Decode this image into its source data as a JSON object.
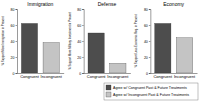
{
  "chart_data": [
    {
      "type": "bar",
      "title": "Immigration",
      "y_label": "% Support More Immigration in Present",
      "categories": [
        "Congruent",
        "Incongruent"
      ],
      "values": [
        62,
        38
      ],
      "colors": [
        "#4d4d4d",
        "#c4c4c4"
      ],
      "ylim": [
        0,
        80
      ],
      "yticks": [
        0,
        20,
        40,
        60,
        80
      ]
    },
    {
      "type": "bar",
      "title": "Defense",
      "y_label": "% Support More Military Investment in Present",
      "categories": [
        "Congruent",
        "Incongruent"
      ],
      "values": [
        50,
        12
      ],
      "colors": [
        "#4d4d4d",
        "#c4c4c4"
      ],
      "ylim": [
        0,
        80
      ],
      "yticks": [
        0,
        20,
        40,
        60,
        80
      ]
    },
    {
      "type": "bar",
      "title": "Economy",
      "y_label": "% Support Less Economic Reg. in Present",
      "categories": [
        "Congruent",
        "Incongruent"
      ],
      "series": [
        {
          "name": "Agree w/ Congruent Past & Future Treatments",
          "color": "#4d4d4d",
          "values": [
            62,
            null
          ]
        },
        {
          "name": "Agree w/ Incongruent Past & Future Treatments",
          "color": "#c4c4c4",
          "values": [
            null,
            44
          ]
        }
      ],
      "legend": "bottom",
      "ylim": [
        0,
        80
      ],
      "yticks": [
        0,
        20,
        40,
        60,
        80
      ]
    }
  ]
}
